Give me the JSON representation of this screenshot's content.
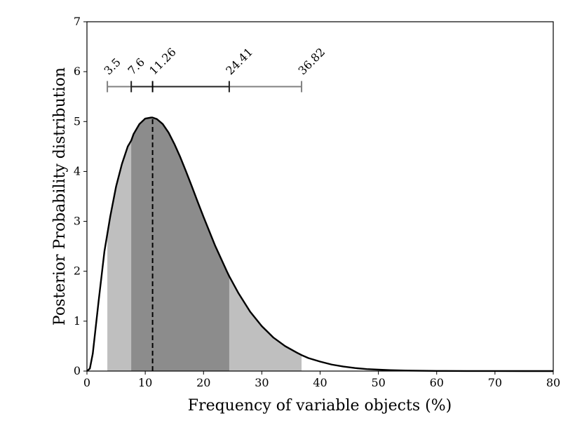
{
  "chart_data": {
    "type": "area",
    "title": "",
    "xlabel": "Frequency of variable objects (%)",
    "ylabel": "Posterior Probability distribution",
    "xlim": [
      0,
      80
    ],
    "ylim": [
      0,
      7
    ],
    "xticks": [
      "0",
      "10",
      "20",
      "30",
      "40",
      "50",
      "60",
      "70",
      "80"
    ],
    "yticks": [
      "0",
      "1",
      "2",
      "3",
      "4",
      "5",
      "6",
      "7"
    ],
    "grid": false,
    "legend": "none",
    "series": [
      {
        "x": [
          0,
          0.5,
          1,
          2,
          3,
          3.5,
          4,
          5,
          6,
          7,
          7.6,
          8,
          9,
          10,
          11,
          11.26,
          12,
          13,
          14,
          15,
          16,
          17,
          18,
          19,
          20,
          22,
          24,
          24.41,
          26,
          28,
          30,
          32,
          34,
          36,
          36.82,
          38,
          40,
          42,
          44,
          46,
          48,
          50,
          52,
          55,
          60,
          65,
          70,
          75,
          80
        ],
        "y": [
          0,
          0.05,
          0.35,
          1.4,
          2.4,
          2.75,
          3.1,
          3.7,
          4.15,
          4.5,
          4.62,
          4.75,
          4.95,
          5.06,
          5.08,
          5.08,
          5.05,
          4.95,
          4.78,
          4.55,
          4.29,
          4.0,
          3.7,
          3.39,
          3.09,
          2.51,
          2.0,
          1.9,
          1.56,
          1.19,
          0.9,
          0.67,
          0.5,
          0.37,
          0.32,
          0.26,
          0.19,
          0.13,
          0.09,
          0.06,
          0.04,
          0.028,
          0.019,
          0.01,
          0.003,
          0.001,
          0.0003,
          0.0001,
          0
        ]
      }
    ],
    "mode": 11.26,
    "inner_interval": [
      7.6,
      24.41
    ],
    "outer_interval": [
      3.5,
      36.82
    ],
    "interval_bar_y": 5.7,
    "marker_labels": [
      "3.5",
      "7.6",
      "11.26",
      "24.41",
      "36.82"
    ],
    "colors": {
      "curve": "#000000",
      "inner_fill": "#8c8c8c",
      "outer_fill": "#bfbfbf",
      "inner_bar": "#222222",
      "outer_bar": "#808080"
    }
  }
}
